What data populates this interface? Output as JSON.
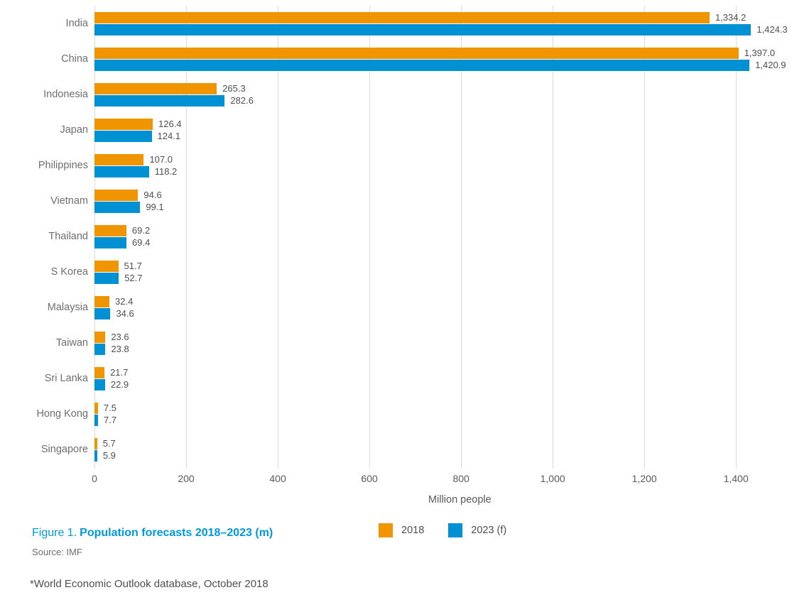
{
  "colors": {
    "series_2018": "#F09400",
    "series_2023": "#0091D4",
    "caption_blue": "#0099D8",
    "gridline": "#DADADA"
  },
  "chart_data": {
    "type": "bar",
    "orientation": "horizontal",
    "title": "Population forecasts 2018–2023 (m)",
    "xlabel": "Million people",
    "xlim": [
      0,
      1550
    ],
    "ticks": [
      0,
      200,
      400,
      600,
      800,
      1000,
      1200,
      1400
    ],
    "grid": true,
    "legend_position": "bottom",
    "categories": [
      "India",
      "China",
      "Indonesia",
      "Japan",
      "Philippines",
      "Vietnam",
      "Thailand",
      "S Korea",
      "Malaysia",
      "Taiwan",
      "Sri Lanka",
      "Hong Kong",
      "Singapore"
    ],
    "series": [
      {
        "name": "2018",
        "color": "#F09400",
        "values": [
          1334.2,
          1397.0,
          265.3,
          126.4,
          107.0,
          94.6,
          69.2,
          51.7,
          32.4,
          23.6,
          21.7,
          7.5,
          5.7
        ]
      },
      {
        "name": "2023 (f)",
        "color": "#0091D4",
        "values": [
          1424.3,
          1420.9,
          282.6,
          124.1,
          118.2,
          99.1,
          69.4,
          52.7,
          34.6,
          23.8,
          22.9,
          7.7,
          5.9
        ]
      }
    ]
  },
  "caption": {
    "prefix": "Figure 1.",
    "title": "Population forecasts 2018–2023 (m)"
  },
  "source": "Source: IMF",
  "footnote": "*World Economic Outlook database, October 2018"
}
